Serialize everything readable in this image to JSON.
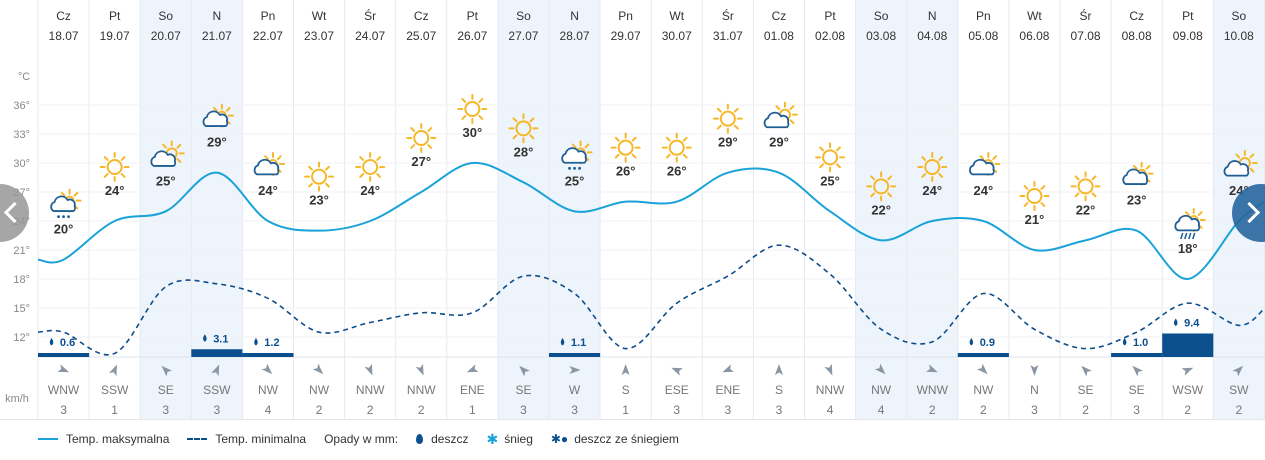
{
  "days": [
    {
      "dow": "Cz",
      "date": "18.07",
      "max": 20,
      "min": 12.5,
      "icon": "partly-cloudy-rain-icon",
      "precip": 0.6,
      "wdir": "WNW",
      "wspd": 3,
      "wdeg": 112.5,
      "weekend": false
    },
    {
      "dow": "Pt",
      "date": "19.07",
      "max": 24,
      "min": 10.3,
      "icon": "sun-icon",
      "precip": null,
      "wdir": "SSW",
      "wspd": 1,
      "wdeg": 22.5,
      "weekend": false
    },
    {
      "dow": "So",
      "date": "20.07",
      "max": 25,
      "min": 17.2,
      "icon": "cloud-sun-icon",
      "precip": null,
      "wdir": "SE",
      "wspd": 3,
      "wdeg": 315,
      "weekend": true
    },
    {
      "dow": "N",
      "date": "21.07",
      "max": 29,
      "min": 17.5,
      "icon": "partly-cloudy-icon",
      "precip": 3.1,
      "wdir": "SSW",
      "wspd": 3,
      "wdeg": 22.5,
      "weekend": true
    },
    {
      "dow": "Pn",
      "date": "22.07",
      "max": 24,
      "min": 16.0,
      "icon": "partly-cloudy-icon",
      "precip": 1.2,
      "wdir": "NW",
      "wspd": 4,
      "wdeg": 135,
      "weekend": false
    },
    {
      "dow": "Wt",
      "date": "23.07",
      "max": 23,
      "min": 12.5,
      "icon": "sun-icon",
      "precip": null,
      "wdir": "NW",
      "wspd": 2,
      "wdeg": 135,
      "weekend": false
    },
    {
      "dow": "Śr",
      "date": "24.07",
      "max": 24,
      "min": 13.5,
      "icon": "sun-icon",
      "precip": null,
      "wdir": "NNW",
      "wspd": 2,
      "wdeg": 157.5,
      "weekend": false
    },
    {
      "dow": "Cz",
      "date": "25.07",
      "max": 27,
      "min": 14.5,
      "icon": "sun-icon",
      "precip": null,
      "wdir": "NNW",
      "wspd": 2,
      "wdeg": 157.5,
      "weekend": false
    },
    {
      "dow": "Pt",
      "date": "26.07",
      "max": 30,
      "min": 14.5,
      "icon": "sun-icon",
      "precip": null,
      "wdir": "ENE",
      "wspd": 1,
      "wdeg": 247.5,
      "weekend": false
    },
    {
      "dow": "So",
      "date": "27.07",
      "max": 28,
      "min": 18.3,
      "icon": "sun-icon",
      "precip": null,
      "wdir": "SE",
      "wspd": 3,
      "wdeg": 315,
      "weekend": true
    },
    {
      "dow": "N",
      "date": "28.07",
      "max": 25,
      "min": 16.5,
      "icon": "partly-cloudy-rain-icon",
      "precip": 1.1,
      "wdir": "W",
      "wspd": 3,
      "wdeg": 90,
      "weekend": true
    },
    {
      "dow": "Pn",
      "date": "29.07",
      "max": 26,
      "min": 10.8,
      "icon": "sun-icon",
      "precip": null,
      "wdir": "S",
      "wspd": 1,
      "wdeg": 0,
      "weekend": false
    },
    {
      "dow": "Wt",
      "date": "30.07",
      "max": 26,
      "min": 15.5,
      "icon": "sun-icon",
      "precip": null,
      "wdir": "ESE",
      "wspd": 3,
      "wdeg": 292.5,
      "weekend": false
    },
    {
      "dow": "Śr",
      "date": "31.07",
      "max": 29,
      "min": 18.3,
      "icon": "sun-icon",
      "precip": null,
      "wdir": "ENE",
      "wspd": 3,
      "wdeg": 247.5,
      "weekend": false
    },
    {
      "dow": "Cz",
      "date": "01.08",
      "max": 29,
      "min": 21.5,
      "icon": "cloud-sun-icon",
      "precip": null,
      "wdir": "S",
      "wspd": 3,
      "wdeg": 0,
      "weekend": false
    },
    {
      "dow": "Pt",
      "date": "02.08",
      "max": 25,
      "min": 18.5,
      "icon": "sun-icon",
      "precip": null,
      "wdir": "NNW",
      "wspd": 4,
      "wdeg": 157.5,
      "weekend": false
    },
    {
      "dow": "So",
      "date": "03.08",
      "max": 22,
      "min": 12.8,
      "icon": "sun-icon",
      "precip": null,
      "wdir": "NW",
      "wspd": 4,
      "wdeg": 135,
      "weekend": true
    },
    {
      "dow": "N",
      "date": "04.08",
      "max": 24,
      "min": 11.5,
      "icon": "sun-icon",
      "precip": null,
      "wdir": "WNW",
      "wspd": 2,
      "wdeg": 112.5,
      "weekend": true
    },
    {
      "dow": "Pn",
      "date": "05.08",
      "max": 24,
      "min": 16.5,
      "icon": "partly-cloudy-icon",
      "precip": 0.9,
      "wdir": "NW",
      "wspd": 2,
      "wdeg": 135,
      "weekend": false
    },
    {
      "dow": "Wt",
      "date": "06.08",
      "max": 21,
      "min": 12.8,
      "icon": "sun-icon",
      "precip": null,
      "wdir": "N",
      "wspd": 3,
      "wdeg": 180,
      "weekend": false
    },
    {
      "dow": "Śr",
      "date": "07.08",
      "max": 22,
      "min": 10.8,
      "icon": "sun-icon",
      "precip": null,
      "wdir": "SE",
      "wspd": 2,
      "wdeg": 315,
      "weekend": false
    },
    {
      "dow": "Cz",
      "date": "08.08",
      "max": 23,
      "min": 12.5,
      "icon": "partly-cloudy-icon",
      "precip": 1.0,
      "wdir": "SE",
      "wspd": 3,
      "wdeg": 315,
      "weekend": false
    },
    {
      "dow": "Pt",
      "date": "09.08",
      "max": 18,
      "min": 15.5,
      "icon": "cloud-rain-icon",
      "precip": 9.4,
      "wdir": "WSW",
      "wspd": 2,
      "wdeg": 67.5,
      "weekend": false
    },
    {
      "dow": "So",
      "date": "10.08",
      "max": 24,
      "min": 13.2,
      "icon": "cloud-sun-icon",
      "precip": null,
      "wdir": "SW",
      "wspd": 2,
      "wdeg": 45,
      "weekend": true
    }
  ],
  "y_axis": {
    "unit": "°C",
    "ticks": [
      36,
      33,
      30,
      27,
      24,
      21,
      18,
      15,
      12
    ]
  },
  "wind_unit": "km/h",
  "legend": {
    "max_label": "Temp. maksymalna",
    "min_label": "Temp. minimalna",
    "precip_title": "Opady w mm:",
    "rain": "deszcz",
    "snow": "śnieg",
    "mix": "deszcz ze śniegiem"
  },
  "colors": {
    "max_line": "#1aa3d8",
    "min_line": "#0d4d8a",
    "precip_bar": "#0b4f8e",
    "weekend_bg": "#eef4fb",
    "sun": "#f6b72a",
    "cloud": "#1f5d95"
  }
}
